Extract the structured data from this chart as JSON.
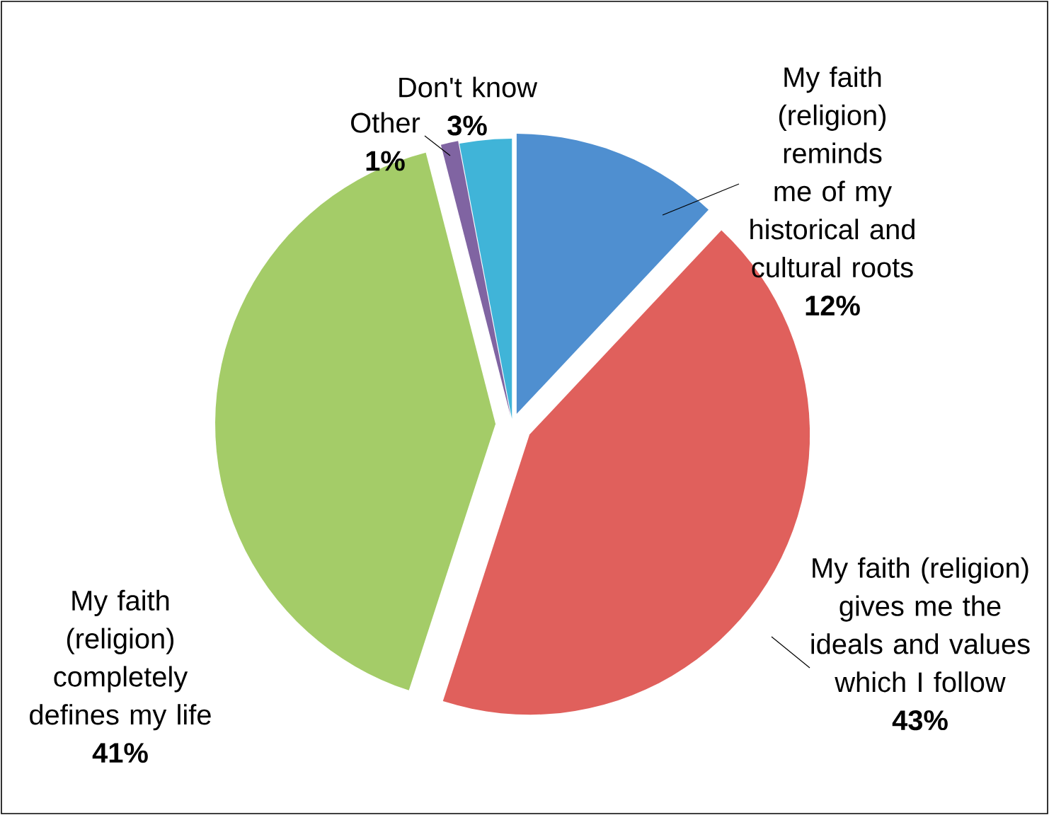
{
  "chart_data": {
    "type": "pie",
    "categories": [
      "My faith (religion) reminds me of my historical and cultural roots",
      "My faith (religion) gives me the ideals and values which I follow",
      "My faith (religion) completely defines my life",
      "Other",
      "Don't know"
    ],
    "values": [
      12,
      43,
      41,
      1,
      3
    ],
    "colors": [
      "#4f8fd0",
      "#e0605c",
      "#a4cc68",
      "#8064a2",
      "#40b4d8"
    ],
    "value_labels": [
      "12%",
      "43%",
      "41%",
      "1%",
      "3%"
    ]
  }
}
